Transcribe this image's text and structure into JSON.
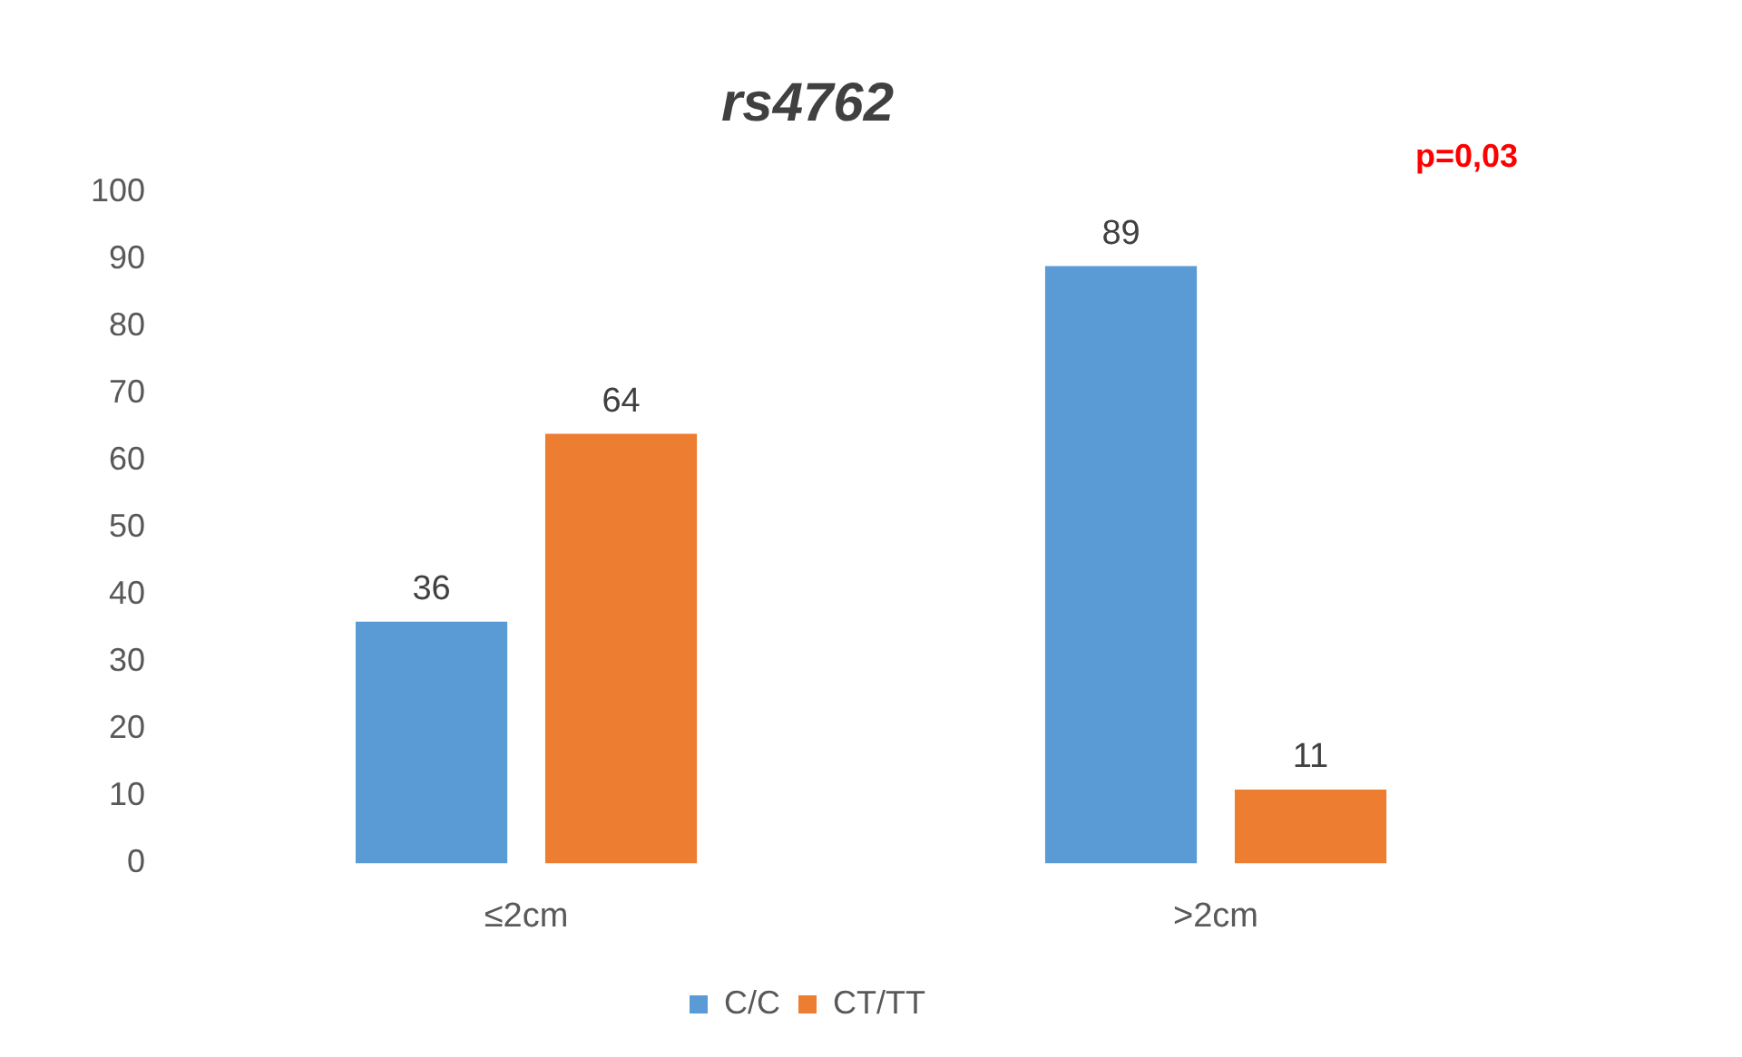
{
  "chart_data": {
    "type": "bar",
    "title": "rs4762",
    "categories": [
      "≤2cm",
      ">2cm"
    ],
    "series": [
      {
        "name": "C/C",
        "color": "#5b9bd5",
        "values": [
          36,
          89
        ]
      },
      {
        "name": "CT/TT",
        "color": "#ed7d31",
        "values": [
          64,
          11
        ]
      }
    ],
    "ylim": [
      0,
      100
    ],
    "yticks": [
      0,
      10,
      20,
      30,
      40,
      50,
      60,
      70,
      80,
      90,
      100
    ],
    "grid": false,
    "legend": "bottom",
    "data_labels": true,
    "annotations": [
      "p=0,03"
    ]
  }
}
